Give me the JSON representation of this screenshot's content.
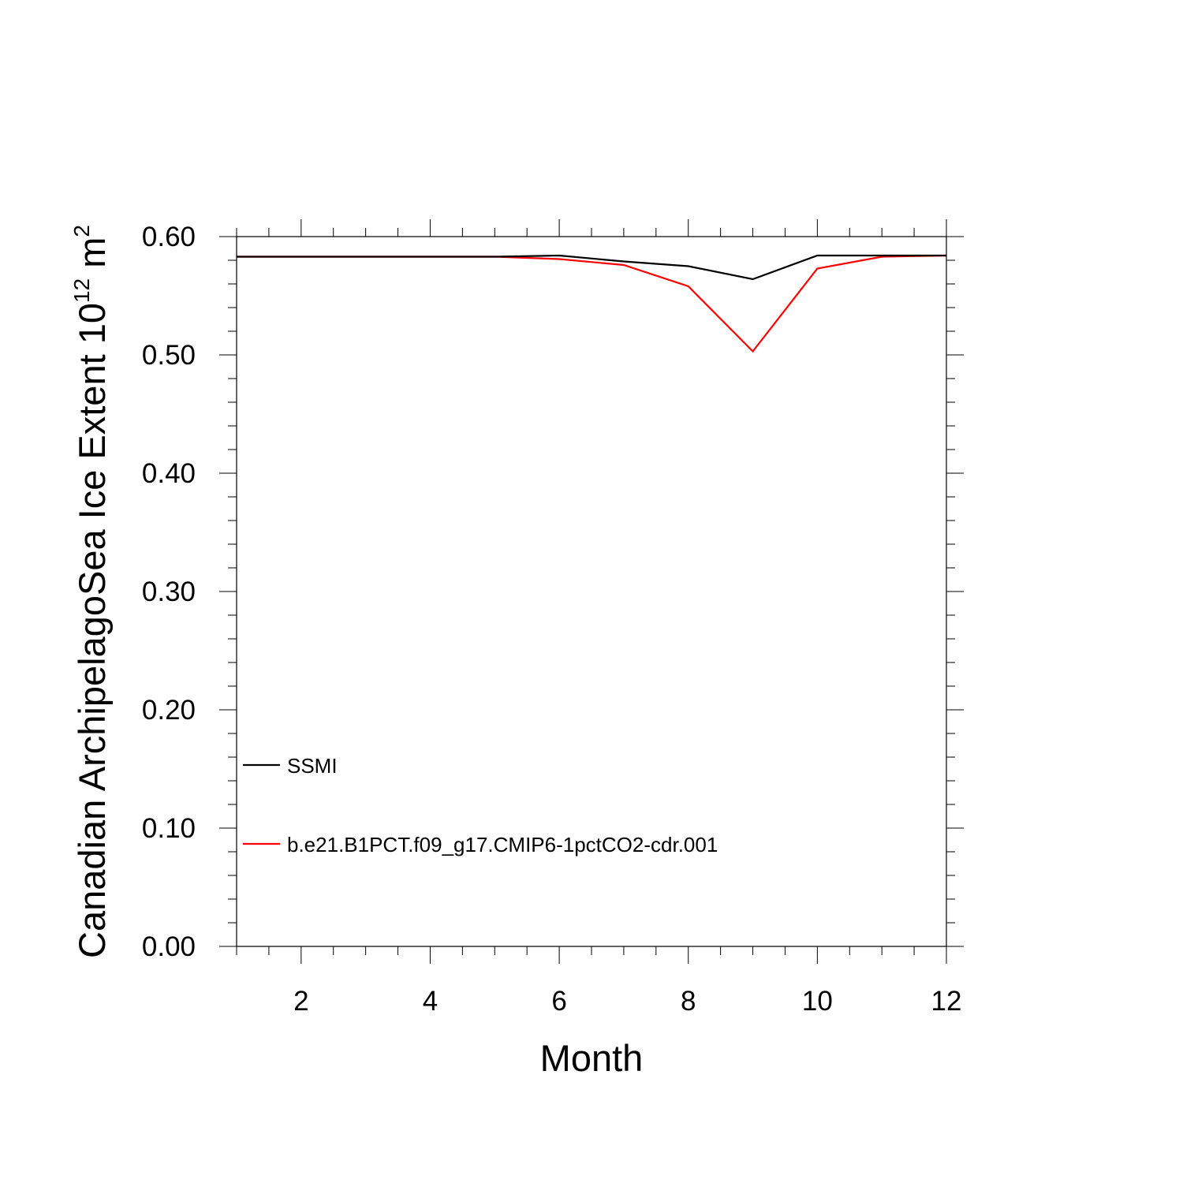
{
  "chart_data": {
    "type": "line",
    "xlabel": "Month",
    "ylabel": {
      "text": "Canadian ArchipelagoSea Ice Extent 10",
      "exponent": "12",
      "unit": " m",
      "unit_exponent": "2"
    },
    "xlim": [
      1,
      12
    ],
    "ylim": [
      0.0,
      0.6
    ],
    "x_ticks": [
      2,
      4,
      6,
      8,
      10,
      12
    ],
    "x_tick_labels": [
      "2",
      "4",
      "6",
      "8",
      "10",
      "12"
    ],
    "y_ticks": [
      0.0,
      0.1,
      0.2,
      0.3,
      0.4,
      0.5,
      0.6
    ],
    "y_tick_labels": [
      "0.00",
      "0.10",
      "0.20",
      "0.30",
      "0.40",
      "0.50",
      "0.60"
    ],
    "x_minor_step": 0.5,
    "y_minor_step": 0.02,
    "grid": false,
    "legend_position": "lower-left",
    "x": [
      1,
      2,
      3,
      4,
      5,
      6,
      7,
      8,
      9,
      10,
      11,
      12
    ],
    "series": [
      {
        "name": "SSMI",
        "color": "#000000",
        "values": [
          0.583,
          0.583,
          0.583,
          0.583,
          0.583,
          0.584,
          0.579,
          0.575,
          0.564,
          0.584,
          0.584,
          0.584
        ]
      },
      {
        "name": "b.e21.B1PCT.f09_g17.CMIP6-1pctCO2-cdr.001",
        "color": "#ff0000",
        "values": [
          0.583,
          0.583,
          0.583,
          0.583,
          0.583,
          0.581,
          0.576,
          0.558,
          0.503,
          0.573,
          0.583,
          0.584
        ]
      }
    ]
  }
}
